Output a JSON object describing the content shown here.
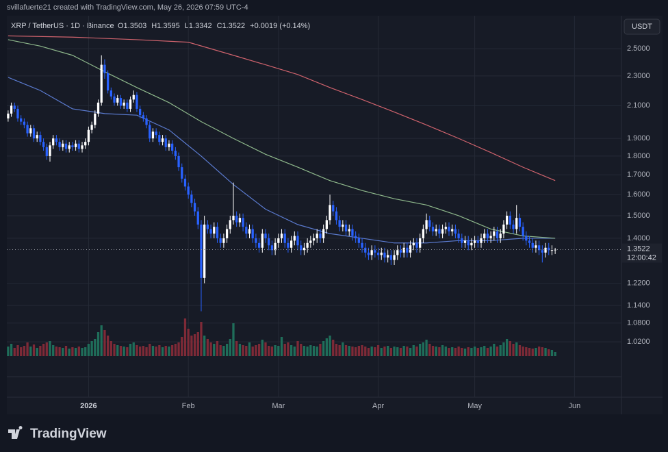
{
  "header": {
    "credit": "svillafuerte21 created with TradingView.com, May 26, 2026 07:59 UTC-4",
    "symbol": "XRP / TetherUS · 1D · Binance",
    "values": [
      "O1.3503",
      "H1.3595",
      "L1.3342",
      "C1.3522",
      "+0.0019 (+0.14%)"
    ],
    "currency": "USDT",
    "countdown": "12:00:42",
    "logo": "TradingView"
  },
  "chart_data": {
    "type": "candlestick",
    "log_scale": true,
    "grid": true,
    "up_color": "#ffffff",
    "down_color": "#2962ff",
    "volume_up_color": "#1f6e5a",
    "volume_down_color": "#7e2a37",
    "xlim": [
      -0.4,
      190.6
    ],
    "xticks": [
      {
        "value": 25,
        "label": "2026"
      },
      {
        "value": 56,
        "label": "Feb"
      },
      {
        "value": 84,
        "label": "Mar"
      },
      {
        "value": 115,
        "label": "Apr"
      },
      {
        "value": 145,
        "label": "May"
      },
      {
        "value": 176,
        "label": "Jun"
      }
    ],
    "ylim": [
      0.861,
      2.765
    ],
    "yticks": [
      {
        "value": 2.5,
        "label": "2.5000"
      },
      {
        "value": 2.3,
        "label": "2.3000"
      },
      {
        "value": 2.1,
        "label": "2.1000"
      },
      {
        "value": 1.9,
        "label": "1.9000"
      },
      {
        "value": 1.8,
        "label": "1.8000"
      },
      {
        "value": 1.7,
        "label": "1.7000"
      },
      {
        "value": 1.6,
        "label": "1.6000"
      },
      {
        "value": 1.5,
        "label": "1.5000"
      },
      {
        "value": 1.4,
        "label": "1.4000"
      },
      {
        "value": 1.22,
        "label": "1.2200"
      },
      {
        "value": 1.14,
        "label": "1.1400"
      },
      {
        "value": 1.08,
        "label": "1.0800"
      },
      {
        "value": 1.02,
        "label": "1.0200"
      }
    ],
    "open": [
      2.02,
      2.05,
      2.1,
      2.08,
      2.02,
      2.0,
      1.98,
      1.93,
      1.96,
      1.9,
      1.92,
      1.88,
      1.85,
      1.8,
      1.86,
      1.9,
      1.88,
      1.85,
      1.87,
      1.84,
      1.86,
      1.85,
      1.87,
      1.84,
      1.86,
      1.88,
      1.95,
      1.98,
      2.05,
      2.12,
      2.38,
      2.32,
      2.2,
      2.16,
      2.12,
      2.15,
      2.1,
      2.12,
      2.08,
      2.14,
      2.17,
      2.08,
      2.04,
      2.02,
      1.98,
      1.9,
      1.94,
      1.92,
      1.88,
      1.9,
      1.85,
      1.87,
      1.83,
      1.8,
      1.74,
      1.68,
      1.64,
      1.6,
      1.56,
      1.52,
      1.46,
      1.24,
      1.46,
      1.44,
      1.42,
      1.45,
      1.4,
      1.38,
      1.4,
      1.44,
      1.48,
      1.5,
      1.47,
      1.49,
      1.45,
      1.42,
      1.44,
      1.4,
      1.38,
      1.36,
      1.42,
      1.4,
      1.37,
      1.35,
      1.38,
      1.4,
      1.42,
      1.38,
      1.36,
      1.39,
      1.41,
      1.37,
      1.35,
      1.36,
      1.38,
      1.39,
      1.4,
      1.42,
      1.4,
      1.44,
      1.48,
      1.55,
      1.52,
      1.48,
      1.45,
      1.46,
      1.43,
      1.44,
      1.41,
      1.4,
      1.38,
      1.36,
      1.34,
      1.33,
      1.35,
      1.34,
      1.33,
      1.34,
      1.32,
      1.33,
      1.31,
      1.33,
      1.35,
      1.34,
      1.36,
      1.34,
      1.37,
      1.38,
      1.36,
      1.4,
      1.44,
      1.48,
      1.45,
      1.43,
      1.44,
      1.42,
      1.44,
      1.45,
      1.43,
      1.44,
      1.42,
      1.4,
      1.38,
      1.39,
      1.37,
      1.38,
      1.39,
      1.38,
      1.4,
      1.42,
      1.4,
      1.41,
      1.43,
      1.4,
      1.42,
      1.46,
      1.5,
      1.46,
      1.44,
      1.49,
      1.45,
      1.41,
      1.39,
      1.38,
      1.36,
      1.37,
      1.35,
      1.34,
      1.36,
      1.35,
      1.3503
    ],
    "high": [
      2.07,
      2.12,
      2.12,
      2.1,
      2.04,
      2.02,
      2.0,
      1.98,
      1.98,
      1.94,
      1.94,
      1.9,
      1.87,
      1.88,
      1.92,
      1.92,
      1.9,
      1.89,
      1.89,
      1.88,
      1.88,
      1.89,
      1.89,
      1.88,
      1.9,
      1.97,
      2.0,
      2.07,
      2.14,
      2.45,
      2.42,
      2.34,
      2.22,
      2.18,
      2.17,
      2.17,
      2.14,
      2.14,
      2.16,
      2.2,
      2.19,
      2.1,
      2.06,
      2.04,
      2.0,
      1.96,
      1.96,
      1.94,
      1.92,
      1.92,
      1.89,
      1.89,
      1.85,
      1.82,
      1.76,
      1.7,
      1.66,
      1.62,
      1.58,
      1.54,
      1.48,
      1.5,
      1.48,
      1.46,
      1.47,
      1.47,
      1.42,
      1.42,
      1.46,
      1.5,
      1.66,
      1.52,
      1.51,
      1.51,
      1.47,
      1.46,
      1.46,
      1.42,
      1.4,
      1.44,
      1.44,
      1.42,
      1.39,
      1.4,
      1.42,
      1.44,
      1.44,
      1.4,
      1.41,
      1.43,
      1.43,
      1.39,
      1.38,
      1.4,
      1.41,
      1.42,
      1.44,
      1.44,
      1.46,
      1.5,
      1.6,
      1.57,
      1.54,
      1.5,
      1.48,
      1.48,
      1.46,
      1.46,
      1.43,
      1.42,
      1.4,
      1.38,
      1.36,
      1.37,
      1.37,
      1.36,
      1.36,
      1.36,
      1.35,
      1.35,
      1.35,
      1.37,
      1.37,
      1.38,
      1.38,
      1.39,
      1.4,
      1.4,
      1.42,
      1.46,
      1.51,
      1.5,
      1.47,
      1.46,
      1.46,
      1.46,
      1.47,
      1.47,
      1.46,
      1.46,
      1.44,
      1.42,
      1.41,
      1.41,
      1.4,
      1.41,
      1.41,
      1.42,
      1.44,
      1.44,
      1.43,
      1.45,
      1.45,
      1.44,
      1.48,
      1.52,
      1.52,
      1.48,
      1.55,
      1.51,
      1.47,
      1.43,
      1.41,
      1.4,
      1.39,
      1.39,
      1.37,
      1.38,
      1.38,
      1.37,
      1.3595
    ],
    "low": [
      2.0,
      2.03,
      2.06,
      2.0,
      1.98,
      1.96,
      1.91,
      1.91,
      1.88,
      1.88,
      1.86,
      1.83,
      1.78,
      1.77,
      1.84,
      1.86,
      1.83,
      1.83,
      1.82,
      1.82,
      1.83,
      1.83,
      1.82,
      1.82,
      1.84,
      1.86,
      1.93,
      1.96,
      2.03,
      2.1,
      2.28,
      2.18,
      2.14,
      2.1,
      2.1,
      2.08,
      2.08,
      2.06,
      2.06,
      2.12,
      2.06,
      2.02,
      2.0,
      1.96,
      1.88,
      1.88,
      1.9,
      1.86,
      1.86,
      1.83,
      1.83,
      1.81,
      1.78,
      1.72,
      1.66,
      1.62,
      1.58,
      1.54,
      1.5,
      1.44,
      1.12,
      1.22,
      1.42,
      1.4,
      1.4,
      1.38,
      1.36,
      1.36,
      1.38,
      1.42,
      1.46,
      1.45,
      1.45,
      1.43,
      1.4,
      1.4,
      1.38,
      1.36,
      1.34,
      1.34,
      1.38,
      1.35,
      1.33,
      1.33,
      1.36,
      1.38,
      1.36,
      1.34,
      1.34,
      1.37,
      1.35,
      1.33,
      1.33,
      1.34,
      1.36,
      1.37,
      1.38,
      1.38,
      1.38,
      1.42,
      1.46,
      1.5,
      1.46,
      1.43,
      1.43,
      1.41,
      1.41,
      1.39,
      1.38,
      1.36,
      1.34,
      1.32,
      1.31,
      1.31,
      1.32,
      1.31,
      1.31,
      1.3,
      1.3,
      1.29,
      1.29,
      1.31,
      1.32,
      1.32,
      1.32,
      1.32,
      1.35,
      1.34,
      1.34,
      1.38,
      1.42,
      1.43,
      1.41,
      1.41,
      1.4,
      1.4,
      1.42,
      1.41,
      1.41,
      1.4,
      1.38,
      1.36,
      1.36,
      1.35,
      1.35,
      1.36,
      1.36,
      1.36,
      1.38,
      1.38,
      1.38,
      1.39,
      1.38,
      1.38,
      1.4,
      1.44,
      1.44,
      1.42,
      1.42,
      1.43,
      1.39,
      1.37,
      1.36,
      1.34,
      1.34,
      1.33,
      1.3,
      1.32,
      1.33,
      1.33,
      1.3342
    ],
    "close": [
      2.05,
      2.1,
      2.08,
      2.02,
      2.0,
      1.98,
      1.93,
      1.96,
      1.9,
      1.92,
      1.88,
      1.85,
      1.8,
      1.86,
      1.9,
      1.88,
      1.85,
      1.87,
      1.84,
      1.86,
      1.85,
      1.87,
      1.84,
      1.86,
      1.88,
      1.95,
      1.98,
      2.05,
      2.12,
      2.38,
      2.32,
      2.2,
      2.16,
      2.12,
      2.15,
      2.1,
      2.12,
      2.08,
      2.14,
      2.17,
      2.08,
      2.04,
      2.02,
      1.98,
      1.9,
      1.94,
      1.92,
      1.88,
      1.9,
      1.85,
      1.87,
      1.83,
      1.8,
      1.74,
      1.68,
      1.64,
      1.6,
      1.56,
      1.52,
      1.46,
      1.24,
      1.46,
      1.44,
      1.42,
      1.45,
      1.4,
      1.38,
      1.4,
      1.44,
      1.48,
      1.5,
      1.47,
      1.49,
      1.45,
      1.42,
      1.44,
      1.4,
      1.38,
      1.36,
      1.42,
      1.4,
      1.37,
      1.35,
      1.38,
      1.4,
      1.42,
      1.38,
      1.36,
      1.39,
      1.41,
      1.37,
      1.35,
      1.36,
      1.38,
      1.39,
      1.4,
      1.42,
      1.4,
      1.44,
      1.48,
      1.55,
      1.52,
      1.48,
      1.45,
      1.46,
      1.43,
      1.44,
      1.41,
      1.4,
      1.38,
      1.36,
      1.34,
      1.33,
      1.35,
      1.34,
      1.33,
      1.34,
      1.32,
      1.33,
      1.31,
      1.33,
      1.35,
      1.34,
      1.36,
      1.34,
      1.37,
      1.38,
      1.36,
      1.4,
      1.44,
      1.48,
      1.45,
      1.43,
      1.44,
      1.42,
      1.44,
      1.45,
      1.43,
      1.44,
      1.42,
      1.4,
      1.38,
      1.39,
      1.37,
      1.38,
      1.39,
      1.38,
      1.4,
      1.42,
      1.4,
      1.41,
      1.43,
      1.4,
      1.42,
      1.46,
      1.5,
      1.46,
      1.44,
      1.49,
      1.45,
      1.41,
      1.39,
      1.38,
      1.36,
      1.37,
      1.35,
      1.34,
      1.36,
      1.35,
      1.3503,
      1.3522
    ],
    "volume": [
      14,
      18,
      12,
      16,
      13,
      15,
      20,
      14,
      17,
      12,
      15,
      18,
      20,
      22,
      16,
      14,
      13,
      12,
      15,
      11,
      13,
      12,
      14,
      12,
      13,
      18,
      22,
      25,
      35,
      45,
      38,
      30,
      22,
      18,
      16,
      15,
      14,
      13,
      18,
      20,
      16,
      14,
      15,
      13,
      18,
      15,
      14,
      16,
      13,
      15,
      14,
      16,
      18,
      20,
      28,
      55,
      40,
      30,
      32,
      35,
      50,
      30,
      25,
      20,
      18,
      22,
      16,
      15,
      18,
      25,
      48,
      22,
      18,
      16,
      15,
      20,
      14,
      16,
      18,
      24,
      20,
      15,
      14,
      16,
      15,
      28,
      18,
      20,
      16,
      14,
      22,
      18,
      15,
      14,
      16,
      15,
      14,
      18,
      22,
      26,
      30,
      24,
      18,
      16,
      20,
      16,
      15,
      14,
      13,
      15,
      16,
      14,
      12,
      14,
      13,
      16,
      12,
      14,
      15,
      12,
      14,
      13,
      12,
      15,
      14,
      12,
      16,
      14,
      18,
      20,
      24,
      18,
      15,
      14,
      13,
      16,
      14,
      12,
      13,
      12,
      14,
      12,
      11,
      13,
      12,
      14,
      12,
      13,
      15,
      12,
      14,
      18,
      14,
      16,
      20,
      25,
      22,
      18,
      20,
      16,
      14,
      13,
      12,
      11,
      12,
      14,
      13,
      12,
      10,
      9,
      6
    ],
    "ma_series": [
      {
        "color": "#5b7bd0",
        "x": [
          0,
          10,
          20,
          30,
          40,
          50,
          60,
          70,
          80,
          90,
          100,
          110,
          120,
          130,
          140,
          150,
          160,
          170
        ],
        "values": [
          2.29,
          2.2,
          2.08,
          2.05,
          2.04,
          1.95,
          1.8,
          1.65,
          1.53,
          1.46,
          1.42,
          1.4,
          1.38,
          1.38,
          1.39,
          1.39,
          1.4,
          1.4
        ]
      },
      {
        "color": "#8fb98c",
        "x": [
          0,
          10,
          20,
          30,
          40,
          50,
          60,
          70,
          80,
          90,
          100,
          110,
          120,
          130,
          140,
          150,
          160,
          170
        ],
        "values": [
          2.57,
          2.52,
          2.45,
          2.33,
          2.22,
          2.12,
          2.0,
          1.9,
          1.81,
          1.74,
          1.67,
          1.62,
          1.58,
          1.55,
          1.5,
          1.44,
          1.41,
          1.4
        ]
      },
      {
        "color": "#d0636d",
        "x": [
          0,
          20,
          40,
          56,
          70,
          80,
          90,
          100,
          110,
          120,
          130,
          140,
          150,
          160,
          170
        ],
        "values": [
          2.6,
          2.59,
          2.57,
          2.55,
          2.45,
          2.38,
          2.31,
          2.22,
          2.14,
          2.06,
          1.98,
          1.9,
          1.82,
          1.74,
          1.67
        ]
      }
    ]
  }
}
